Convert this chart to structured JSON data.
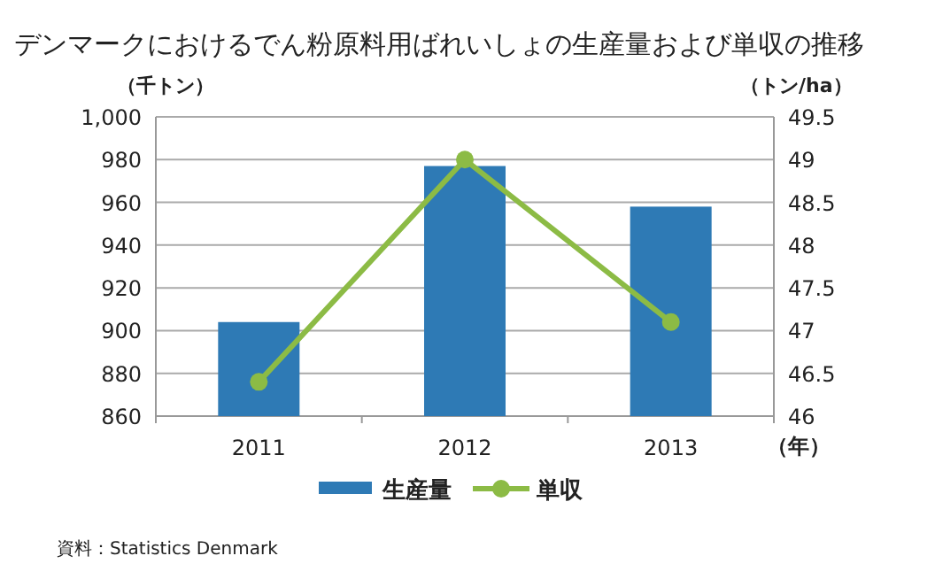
{
  "chart_data": {
    "type": "bar",
    "title": "デンマークにおけるでん粉原料用ばれいしょの生産量および単収の推移",
    "ylabel": "（千トン）",
    "y2label": "（トン/ha）",
    "xlabel": "（年）",
    "categories": [
      "2011",
      "2012",
      "2013"
    ],
    "series": [
      {
        "name": "生産量",
        "color": "#2e7ab5",
        "values": [
          904,
          977,
          958
        ]
      },
      {
        "name": "単収",
        "type": "line",
        "axis": "y2",
        "color": "#8cbb45",
        "marker": "circle",
        "values": [
          46.4,
          49.0,
          47.1
        ]
      }
    ],
    "ylim": [
      860,
      1000
    ],
    "yticks": [
      860,
      880,
      900,
      920,
      940,
      960,
      980,
      {
        "value": 1000,
        "label": "1,000"
      }
    ],
    "y2lim": [
      46,
      49.5
    ],
    "y2ticks": [
      46,
      46.5,
      47,
      47.5,
      48,
      48.5,
      49,
      49.5
    ],
    "grid": "y",
    "legend": "bottom",
    "annotations": [
      "資料：Statistics Denmark"
    ]
  }
}
